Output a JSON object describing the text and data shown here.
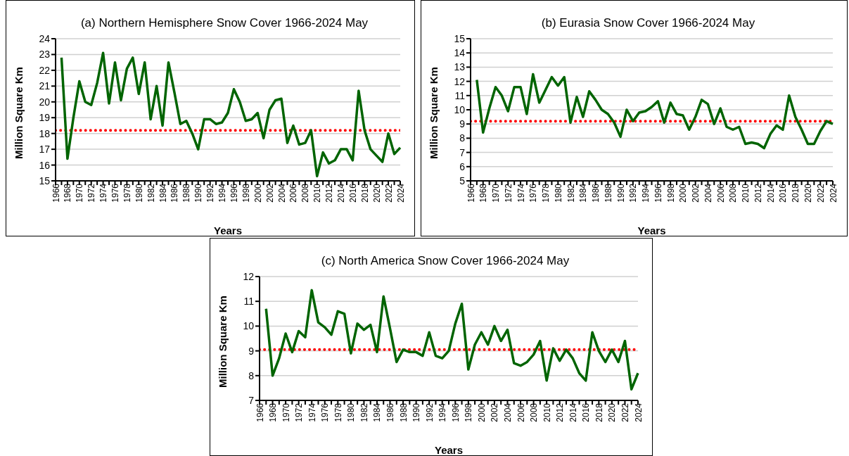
{
  "chart_data": [
    {
      "type": "line",
      "title": "(a) Northern Hemisphere Snow Cover 1966-2024 May",
      "xlabel": "Years",
      "ylabel": "Million Square Km",
      "categories": [
        "1966",
        null,
        "1968",
        null,
        "1970",
        null,
        "1972",
        null,
        "1974",
        null,
        "1976",
        null,
        "1978",
        null,
        "1980",
        null,
        "1982",
        null,
        "1984",
        null,
        "1986",
        null,
        "1988",
        null,
        "1990",
        null,
        "1992",
        null,
        "1994",
        null,
        "1996",
        null,
        "1998",
        null,
        "2000",
        null,
        "2002",
        null,
        "2004",
        null,
        "2006",
        null,
        "2008",
        null,
        "2010",
        null,
        "2012",
        null,
        "2014",
        null,
        "2016",
        null,
        "2018",
        null,
        "2020",
        null,
        "2022",
        null,
        "2024"
      ],
      "series": [
        {
          "color": "#006400",
          "values": [
            null,
            22.8,
            16.4,
            19.0,
            21.3,
            20.0,
            19.8,
            21.2,
            23.1,
            19.9,
            22.5,
            20.1,
            22.1,
            22.8,
            20.5,
            22.5,
            18.9,
            21.0,
            18.5,
            22.5,
            20.6,
            18.6,
            18.8,
            18.0,
            17.0,
            18.9,
            18.9,
            18.6,
            18.7,
            19.3,
            20.8,
            20.0,
            18.8,
            18.9,
            19.3,
            17.7,
            19.5,
            20.1,
            20.2,
            17.4,
            18.5,
            17.3,
            17.4,
            18.2,
            15.3,
            16.8,
            16.1,
            16.3,
            17.0,
            17.0,
            16.3,
            20.7,
            18.2,
            17.0,
            16.6,
            16.2,
            18.0,
            16.7,
            17.1
          ]
        }
      ],
      "ylim": [
        15,
        24
      ],
      "yticks": [
        15,
        16,
        17,
        18,
        19,
        20,
        21,
        22,
        23,
        24
      ],
      "grid": "y",
      "marker": "none",
      "line_style": "solid",
      "ref_lines": [
        {
          "axis": "y",
          "value": 18.2,
          "color": "#ff0000",
          "line_style": "dotted"
        }
      ]
    },
    {
      "type": "line",
      "title": "(b) Eurasia Snow Cover 1966-2024 May",
      "xlabel": "Years",
      "ylabel": "Million Square Km",
      "categories": [
        "1966",
        null,
        "1968",
        null,
        "1970",
        null,
        "1972",
        null,
        "1974",
        null,
        "1976",
        null,
        "1978",
        null,
        "1980",
        null,
        "1982",
        null,
        "1984",
        null,
        "1986",
        null,
        "1988",
        null,
        "1990",
        null,
        "1992",
        null,
        "1994",
        null,
        "1996",
        null,
        "1998",
        null,
        "2000",
        null,
        "2002",
        null,
        "2004",
        null,
        "2006",
        null,
        "2008",
        null,
        "2010",
        null,
        "2012",
        null,
        "2014",
        null,
        "2016",
        null,
        "2018",
        null,
        "2020",
        null,
        "2022",
        null,
        "2024"
      ],
      "series": [
        {
          "color": "#006400",
          "values": [
            null,
            12.1,
            8.4,
            10.1,
            11.6,
            11.0,
            9.9,
            11.6,
            11.6,
            9.7,
            12.5,
            10.5,
            11.4,
            12.3,
            11.7,
            12.3,
            9.1,
            10.9,
            9.5,
            11.3,
            10.7,
            10.0,
            9.7,
            9.1,
            8.1,
            10.0,
            9.2,
            9.8,
            9.9,
            10.2,
            10.6,
            9.1,
            10.5,
            9.7,
            9.6,
            8.6,
            9.5,
            10.7,
            10.4,
            9.0,
            10.1,
            8.8,
            8.6,
            8.8,
            7.6,
            7.7,
            7.6,
            7.3,
            8.3,
            8.9,
            8.6,
            11.0,
            9.5,
            8.6,
            7.6,
            7.6,
            8.5,
            9.2,
            9.0
          ]
        }
      ],
      "ylim": [
        5,
        15
      ],
      "yticks": [
        5,
        6,
        7,
        8,
        9,
        10,
        11,
        12,
        13,
        14,
        15
      ],
      "grid": "y",
      "marker": "none",
      "line_style": "solid",
      "ref_lines": [
        {
          "axis": "y",
          "value": 9.2,
          "color": "#ff0000",
          "line_style": "dotted"
        }
      ]
    },
    {
      "type": "line",
      "title": "(c) North America Snow Cover 1966-2024 May",
      "xlabel": "Years",
      "ylabel": "Million Square Km",
      "categories": [
        "1966",
        null,
        "1968",
        null,
        "1970",
        null,
        "1972",
        null,
        "1974",
        null,
        "1976",
        null,
        "1978",
        null,
        "1980",
        null,
        "1982",
        null,
        "1984",
        null,
        "1986",
        null,
        "1988",
        null,
        "1990",
        null,
        "1992",
        null,
        "1994",
        null,
        "1996",
        null,
        "1998",
        null,
        "2000",
        null,
        "2002",
        null,
        "2004",
        null,
        "2006",
        null,
        "2008",
        null,
        "2010",
        null,
        "2012",
        null,
        "2014",
        null,
        "2016",
        null,
        "2018",
        null,
        "2020",
        null,
        "2022",
        null,
        "2024"
      ],
      "series": [
        {
          "color": "#006400",
          "values": [
            null,
            10.7,
            8.0,
            8.7,
            9.7,
            8.95,
            9.8,
            9.55,
            11.45,
            10.15,
            9.95,
            9.65,
            10.6,
            10.5,
            8.9,
            10.1,
            9.85,
            10.05,
            8.95,
            11.2,
            9.9,
            8.55,
            9.05,
            8.95,
            8.95,
            8.8,
            9.75,
            8.8,
            8.7,
            9.0,
            10.1,
            10.9,
            8.25,
            9.25,
            9.75,
            9.25,
            10.0,
            9.4,
            9.85,
            8.5,
            8.4,
            8.55,
            8.85,
            9.4,
            7.8,
            9.1,
            8.6,
            9.05,
            8.7,
            8.1,
            7.8,
            9.75,
            9.0,
            8.55,
            9.05,
            8.55,
            9.4,
            7.45,
            8.1
          ]
        }
      ],
      "ylim": [
        7,
        12
      ],
      "yticks": [
        7,
        8,
        9,
        10,
        11,
        12
      ],
      "grid": "y",
      "marker": "none",
      "line_style": "solid",
      "ref_lines": [
        {
          "axis": "y",
          "value": 9.05,
          "color": "#ff0000",
          "line_style": "dotted"
        }
      ]
    }
  ]
}
